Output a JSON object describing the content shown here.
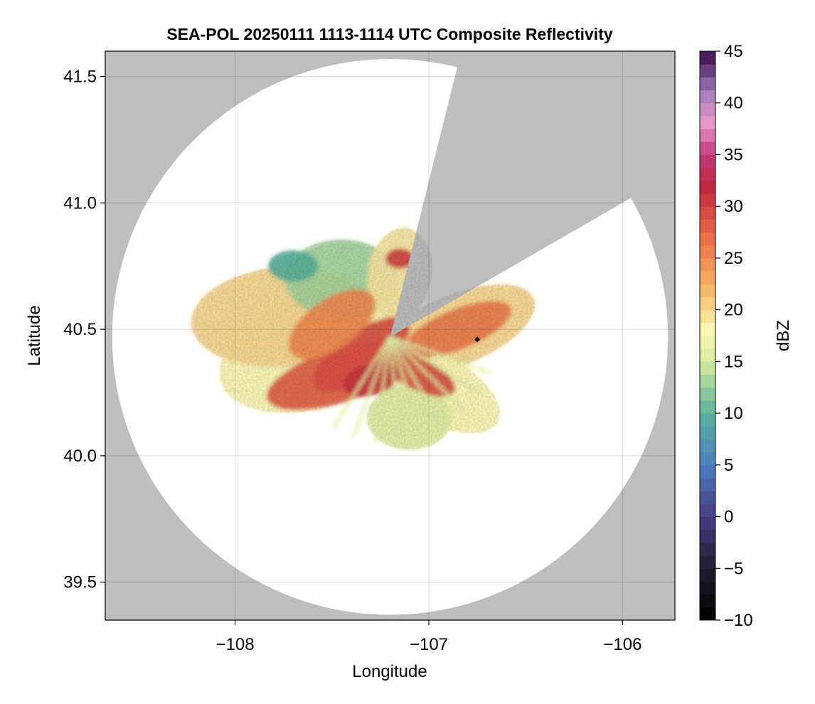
{
  "chart_data": {
    "type": "heatmap",
    "title": "SEA-POL 20250111 1113-1114 UTC Composite Reflectivity",
    "xlabel": "Longitude",
    "ylabel": "Latitude",
    "xlim": [
      -108.67,
      -105.73
    ],
    "ylim": [
      39.35,
      41.6
    ],
    "x_ticks": [
      -108,
      -107,
      -106
    ],
    "x_tick_labels": [
      "−108",
      "−107",
      "−106"
    ],
    "y_ticks": [
      39.5,
      40.0,
      40.5,
      41.0,
      41.5
    ],
    "y_tick_labels": [
      "39.5",
      "40.0",
      "40.5",
      "41.0",
      "41.5"
    ],
    "grid": true,
    "radar_center": {
      "lon": -107.2,
      "lat": 40.47
    },
    "max_range_km": 122,
    "blocked_sectors_deg": [
      [
        14,
        60
      ]
    ],
    "marker": {
      "lon": -106.75,
      "lat": 40.46,
      "shape": "diamond"
    },
    "colorbar": {
      "label": "dBZ",
      "min": -10,
      "max": 45,
      "ticks": [
        -10,
        -5,
        0,
        5,
        10,
        15,
        20,
        25,
        30,
        35,
        40,
        45
      ],
      "tick_labels": [
        "−10",
        "−5",
        "0",
        "5",
        "10",
        "15",
        "20",
        "25",
        "30",
        "35",
        "40",
        "45"
      ],
      "colormap": "spectral-extended",
      "color_stops": [
        {
          "value": -10,
          "color": "#000000"
        },
        {
          "value": -5,
          "color": "#1f1d2e"
        },
        {
          "value": 0,
          "color": "#4a3c82"
        },
        {
          "value": 5,
          "color": "#4a7fc0"
        },
        {
          "value": 10,
          "color": "#5ab39b"
        },
        {
          "value": 15,
          "color": "#d7ec9c"
        },
        {
          "value": 18,
          "color": "#fbf7b4"
        },
        {
          "value": 22,
          "color": "#f6b766"
        },
        {
          "value": 27,
          "color": "#ec6d47"
        },
        {
          "value": 32,
          "color": "#c0273f"
        },
        {
          "value": 35,
          "color": "#c23a7c"
        },
        {
          "value": 38,
          "color": "#e89ac8"
        },
        {
          "value": 41,
          "color": "#a47cbc"
        },
        {
          "value": 45,
          "color": "#3a0c4a"
        }
      ]
    },
    "colors": {
      "outside_range": "#bebebe",
      "no_echo": "#ffffff"
    },
    "echo_region_summary": [
      {
        "region": "core west-southwest",
        "lon": -107.5,
        "lat": 40.33,
        "dbz": 28
      },
      {
        "region": "east-northeast lobe",
        "lon": -106.75,
        "lat": 40.55,
        "dbz": 26
      },
      {
        "region": "north-northwest edge",
        "lon": -107.6,
        "lat": 40.75,
        "dbz": 12
      },
      {
        "region": "far west fringe",
        "lon": -108.0,
        "lat": 40.55,
        "dbz": 19
      },
      {
        "region": "south spokes",
        "lon": -107.05,
        "lat": 40.1,
        "dbz": 16
      }
    ]
  }
}
